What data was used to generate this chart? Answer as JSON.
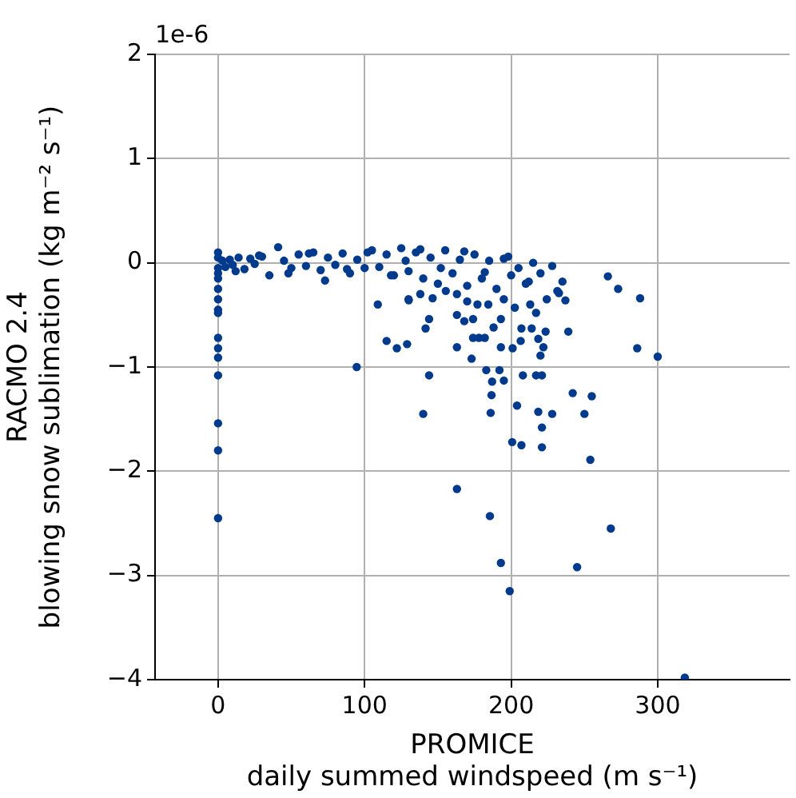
{
  "chart_data": {
    "type": "scatter",
    "xlabel": "PROMICE\ndaily summed windspeed (m s⁻¹)",
    "ylabel": "RACMO 2.4\nblowing snow sublimation (kg m⁻² s⁻¹)",
    "annotations": [
      "1e-6"
    ],
    "xlim": [
      -43,
      390
    ],
    "ylim": [
      -4,
      2
    ],
    "xticks": [
      0,
      100,
      200,
      300
    ],
    "yticks": [
      -4,
      -3,
      -2,
      -1,
      0,
      1,
      2
    ],
    "grid": true,
    "marker": "circle",
    "legend": false,
    "series": [
      {
        "color": "#003a8c",
        "x": [
          0,
          0,
          0,
          0,
          0,
          0,
          0,
          0,
          0,
          0,
          0,
          0,
          0,
          0,
          0,
          0,
          3,
          5,
          8,
          10,
          14,
          18,
          22,
          25,
          30,
          35,
          41,
          45,
          50,
          55,
          60,
          65,
          70,
          73,
          75,
          80,
          85,
          90,
          95,
          100,
          105,
          110,
          115,
          120,
          125,
          128,
          130,
          135,
          140,
          145,
          150,
          155,
          160,
          165,
          170,
          175,
          180,
          185,
          190,
          195,
          200,
          205,
          210,
          215,
          220,
          12,
          28,
          48,
          62,
          88,
          102,
          118,
          138,
          152,
          168,
          182,
          198,
          212,
          94.6,
          109,
          115,
          122,
          129,
          144,
          140,
          130,
          163,
          185.5,
          268,
          254,
          255,
          242,
          250,
          228,
          218.5,
          221,
          221,
          207,
          200.7,
          204,
          186,
          186.6,
          187,
          195,
          183,
          192,
          208,
          217,
          221,
          173,
          163,
          193,
          201,
          206.5,
          220,
          222,
          218.5,
          223.5,
          239,
          286,
          300,
          288,
          273,
          266,
          228,
          235,
          232.6,
          237,
          207,
          214,
          174,
          178,
          182,
          188,
          144,
          141.6,
          163,
          168,
          174,
          193,
          130.1,
          138,
          146.4,
          155.4,
          163,
          170,
          177,
          184.4,
          195,
          202.5,
          213,
          217,
          224.3,
          231.5,
          318.5,
          193,
          199,
          245
        ],
        "values": [
          0.1,
          0.05,
          -0.05,
          -0.1,
          -0.15,
          -0.25,
          -0.35,
          -0.45,
          -0.48,
          -0.72,
          -0.82,
          -0.91,
          -1.08,
          -1.54,
          -1.8,
          -2.45,
          0.02,
          -0.04,
          0.03,
          -0.02,
          0.05,
          -0.06,
          0.04,
          -0.01,
          0.06,
          -0.12,
          0.15,
          0.02,
          -0.05,
          0.08,
          -0.03,
          0.1,
          -0.07,
          -0.17,
          0.05,
          -0.02,
          0.09,
          -0.1,
          0.03,
          -0.05,
          0.12,
          -0.04,
          0.08,
          -0.12,
          0.14,
          0.02,
          -0.08,
          0.1,
          -0.15,
          0.05,
          -0.2,
          0.12,
          -0.1,
          0.03,
          -0.22,
          0.08,
          -0.15,
          0.02,
          -0.25,
          0.04,
          -0.12,
          -0.05,
          -0.2,
          0.0,
          -0.1,
          -0.08,
          0.07,
          -0.1,
          0.09,
          -0.06,
          0.1,
          -0.12,
          0.13,
          -0.05,
          0.11,
          -0.09,
          0.06,
          -0.18,
          -1.0,
          -0.4,
          -0.75,
          -0.82,
          -0.78,
          -1.08,
          -1.45,
          -0.35,
          -2.17,
          -2.43,
          -2.55,
          -1.89,
          -1.28,
          -1.25,
          -1.45,
          -1.45,
          -1.43,
          -1.58,
          -1.77,
          -1.75,
          -1.72,
          -1.37,
          -1.44,
          -1.27,
          -1.14,
          -1.13,
          -1.03,
          -1.03,
          -1.08,
          -1.08,
          -1.08,
          -0.92,
          -0.81,
          -0.81,
          -0.82,
          -0.75,
          -0.89,
          -0.81,
          -0.73,
          -0.66,
          -0.66,
          -0.82,
          -0.9,
          -0.34,
          -0.25,
          -0.13,
          -0.03,
          -0.18,
          -0.29,
          -0.36,
          -0.63,
          -0.63,
          -0.72,
          -0.72,
          -0.72,
          -0.62,
          -0.54,
          -0.63,
          -0.5,
          -0.56,
          -0.54,
          -0.54,
          -0.36,
          -0.3,
          -0.34,
          -0.27,
          -0.3,
          -0.37,
          -0.4,
          -0.4,
          -0.35,
          -0.43,
          -0.4,
          -0.48,
          -0.35,
          -0.27,
          -3.98,
          -2.88,
          -3.15,
          -2.92
        ]
      }
    ]
  }
}
